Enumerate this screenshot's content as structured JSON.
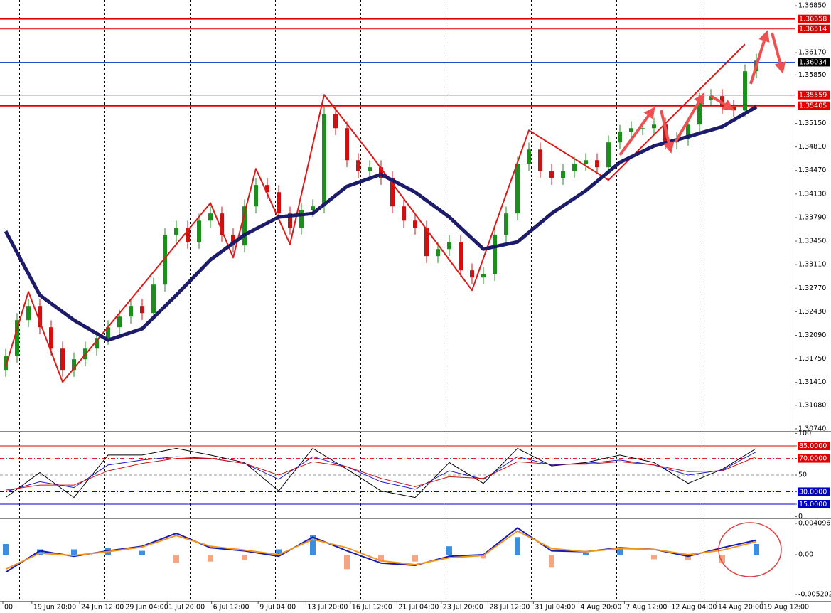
{
  "chart_data": [
    {
      "type": "candlestick",
      "x": [
        0,
        1,
        2,
        3,
        4,
        5,
        6,
        7,
        8,
        9,
        10,
        11,
        12,
        13,
        14,
        15,
        16,
        17,
        18,
        19,
        20,
        21,
        22,
        23,
        24,
        25,
        26,
        27,
        28,
        29,
        30,
        31,
        32,
        33,
        34,
        35,
        36,
        37,
        38,
        39,
        40,
        41,
        42,
        43,
        44,
        45,
        46,
        47,
        48,
        49,
        50,
        51,
        52,
        53,
        54,
        55,
        56,
        57,
        58,
        59,
        60,
        61,
        62,
        63,
        64,
        65,
        66
      ],
      "open": [
        1.3159,
        1.31795,
        1.32309,
        1.32514,
        1.32206,
        1.31898,
        1.3159,
        1.31744,
        1.31898,
        1.32052,
        1.32206,
        1.3236,
        1.32514,
        1.32411,
        1.32822,
        1.33541,
        1.33644,
        1.33438,
        1.33746,
        1.33849,
        1.33541,
        1.33387,
        1.33952,
        1.3426,
        1.34157,
        1.33849,
        1.33644,
        1.339,
        1.33952,
        1.35287,
        1.35081,
        1.34619,
        1.34465,
        1.34517,
        1.34362,
        1.33952,
        1.33746,
        1.33644,
        1.33233,
        1.33335,
        1.33438,
        1.33027,
        1.32925,
        1.32976,
        1.33541,
        1.33849,
        1.34568,
        1.34773,
        1.34465,
        1.34362,
        1.34465,
        1.34568,
        1.34619,
        1.34517,
        1.34876,
        1.3503,
        1.35081,
        1.35081,
        1.35133,
        1.34876,
        1.34927,
        1.35133,
        1.35492,
        1.35544,
        1.3539,
        1.35338,
        1.35903
      ],
      "high": [
        1.31895,
        1.32409,
        1.32614,
        1.32614,
        1.32306,
        1.31998,
        1.31844,
        1.31998,
        1.32152,
        1.32306,
        1.3246,
        1.32614,
        1.32614,
        1.32922,
        1.33641,
        1.33744,
        1.33744,
        1.33846,
        1.33949,
        1.33949,
        1.33641,
        1.34052,
        1.3436,
        1.3436,
        1.34257,
        1.33949,
        1.34,
        1.34052,
        1.35387,
        1.35387,
        1.35181,
        1.34719,
        1.34617,
        1.34617,
        1.34462,
        1.34052,
        1.33846,
        1.33744,
        1.33435,
        1.33538,
        1.33538,
        1.33127,
        1.33076,
        1.33641,
        1.33949,
        1.34668,
        1.34873,
        1.34873,
        1.34565,
        1.34565,
        1.34668,
        1.34719,
        1.34719,
        1.34976,
        1.3513,
        1.35181,
        1.35181,
        1.35233,
        1.35233,
        1.35027,
        1.35233,
        1.35592,
        1.35644,
        1.35644,
        1.3549,
        1.36003,
        1.36157
      ],
      "low": [
        1.3149,
        1.31695,
        1.32209,
        1.32106,
        1.31798,
        1.3149,
        1.3149,
        1.31644,
        1.31798,
        1.31952,
        1.32106,
        1.3226,
        1.32311,
        1.32311,
        1.32722,
        1.33441,
        1.33338,
        1.33338,
        1.33646,
        1.33441,
        1.33287,
        1.33287,
        1.33852,
        1.34057,
        1.33749,
        1.33544,
        1.33544,
        1.338,
        1.33852,
        1.34981,
        1.34519,
        1.34365,
        1.34365,
        1.34262,
        1.33852,
        1.33646,
        1.33544,
        1.33133,
        1.33133,
        1.33235,
        1.32927,
        1.32825,
        1.32825,
        1.32876,
        1.33441,
        1.33749,
        1.34468,
        1.34365,
        1.34262,
        1.34262,
        1.34365,
        1.34468,
        1.34417,
        1.34417,
        1.34776,
        1.3493,
        1.34981,
        1.34981,
        1.34776,
        1.34776,
        1.34827,
        1.35033,
        1.35392,
        1.3529,
        1.35238,
        1.35238,
        1.35803
      ],
      "close": [
        1.31795,
        1.32309,
        1.32514,
        1.32206,
        1.31898,
        1.3159,
        1.31744,
        1.31898,
        1.32052,
        1.32206,
        1.3236,
        1.32514,
        1.32411,
        1.32822,
        1.33541,
        1.33644,
        1.33438,
        1.33746,
        1.33849,
        1.33541,
        1.33387,
        1.33952,
        1.3426,
        1.34157,
        1.33849,
        1.33644,
        1.339,
        1.33952,
        1.35287,
        1.35081,
        1.34619,
        1.34465,
        1.34517,
        1.34362,
        1.33952,
        1.33746,
        1.33644,
        1.33233,
        1.33335,
        1.33438,
        1.33027,
        1.32925,
        1.32976,
        1.33541,
        1.33849,
        1.34568,
        1.34773,
        1.34465,
        1.34362,
        1.34465,
        1.34568,
        1.34619,
        1.34517,
        1.34876,
        1.3503,
        1.35081,
        1.35081,
        1.35133,
        1.34876,
        1.34927,
        1.35133,
        1.35492,
        1.35544,
        1.3539,
        1.35338,
        1.35903,
        1.36057
      ],
      "up_color": "#1a8f1a",
      "down_color": "#d01010",
      "moving_average": {
        "color": "#1c1c6b",
        "x": [
          0,
          3,
          6,
          9,
          12,
          15,
          18,
          21,
          24,
          27,
          30,
          33,
          36,
          39,
          42,
          45,
          48,
          51,
          54,
          57,
          60,
          63,
          66
        ],
        "values": [
          1.33592,
          1.3267,
          1.32309,
          1.32021,
          1.32185,
          1.3267,
          1.33181,
          1.33541,
          1.33798,
          1.33849,
          1.34239,
          1.34414,
          1.34157,
          1.33798,
          1.33336,
          1.33438,
          1.33849,
          1.34178,
          1.34588,
          1.34825,
          1.34958,
          1.35102,
          1.3539
        ]
      },
      "zigzag": {
        "color": "#e01818",
        "x": [
          0,
          2,
          5,
          18,
          20,
          22,
          25,
          28,
          32,
          41,
          46,
          53,
          65
        ],
        "values": [
          1.31641,
          1.32719,
          1.31415,
          1.34,
          1.33212,
          1.34496,
          1.33407,
          1.35564,
          1.34722,
          1.3274,
          1.35051,
          1.34332,
          1.36293
        ]
      },
      "levels": [
        {
          "value": 1.36658,
          "color": "#e00000",
          "line_width": 2
        },
        {
          "value": 1.36514,
          "color": "#e00000",
          "line_width": 1
        },
        {
          "value": 1.36034,
          "color": "#2050d0",
          "line_width": 1,
          "label_color": "#000000"
        },
        {
          "value": 1.35559,
          "color": "#e00000",
          "line_width": 1
        },
        {
          "value": 1.35405,
          "color": "#e00000",
          "line_width": 2
        }
      ],
      "xlim": [
        -0.5,
        69.375
      ],
      "xticks": [
        {
          "value": -0.25,
          "label": "00"
        },
        {
          "value": 2.3,
          "label": "19 Jun 20:00"
        },
        {
          "value": 6.5,
          "label": "24 Jun 12:00"
        },
        {
          "value": 10.4,
          "label": "29 Jun 04:00"
        },
        {
          "value": 14.2,
          "label": "1 Jul 20:00"
        },
        {
          "value": 18.1,
          "label": "6 Jul 12:00"
        },
        {
          "value": 22.2,
          "label": "9 Jul 04:00"
        },
        {
          "value": 26.4,
          "label": "13 Jul 20:00"
        },
        {
          "value": 30.3,
          "label": "16 Jul 12:00"
        },
        {
          "value": 34.4,
          "label": "21 Jul 04:00"
        },
        {
          "value": 38.3,
          "label": "23 Jul 20:00"
        },
        {
          "value": 42.4,
          "label": "28 Jul 12:00"
        },
        {
          "value": 46.4,
          "label": "31 Jul 04:00"
        },
        {
          "value": 50.4,
          "label": "4 Aug 20:00"
        },
        {
          "value": 54.4,
          "label": "7 Aug 12:00"
        },
        {
          "value": 58.4,
          "label": "12 Aug 04:00"
        },
        {
          "value": 62.5,
          "label": "14 Aug 20:00"
        },
        {
          "value": 66.5,
          "label": "19 Aug 12:00"
        }
      ],
      "ylim": [
        1.30719,
        1.36932
      ],
      "yticks": [
        {
          "value": 1.3685,
          "label": "1.36850"
        },
        {
          "value": 1.3617,
          "label": "1.36170"
        },
        {
          "value": 1.3585,
          "label": "1.35850"
        },
        {
          "value": 1.3515,
          "label": "1.35150"
        },
        {
          "value": 1.3481,
          "label": "1.34810"
        },
        {
          "value": 1.3447,
          "label": "1.34470"
        },
        {
          "value": 1.3413,
          "label": "1.34130"
        },
        {
          "value": 1.3379,
          "label": "1.33790"
        },
        {
          "value": 1.3345,
          "label": "1.33450"
        },
        {
          "value": 1.3311,
          "label": "1.33110"
        },
        {
          "value": 1.3277,
          "label": "1.32770"
        },
        {
          "value": 1.3243,
          "label": "1.32430"
        },
        {
          "value": 1.3209,
          "label": "1.32090"
        },
        {
          "value": 1.3175,
          "label": "1.31750"
        },
        {
          "value": 1.3141,
          "label": "1.31410"
        },
        {
          "value": 1.3108,
          "label": "1.31080"
        },
        {
          "value": 1.3074,
          "label": "1.30740"
        }
      ]
    },
    {
      "type": "line",
      "x": [
        0,
        3,
        6,
        9,
        12,
        15,
        18,
        21,
        24,
        27,
        30,
        33,
        36,
        39,
        42,
        45,
        48,
        51,
        54,
        57,
        60,
        63,
        66
      ],
      "series": [
        {
          "color": "#000000",
          "values": [
            23,
            53,
            23,
            74,
            74,
            82,
            74,
            65,
            31,
            82,
            57,
            31,
            23,
            65,
            40,
            82,
            61,
            65,
            74,
            65,
            40,
            57,
            82
          ]
        },
        {
          "color": "#1a1ac8",
          "values": [
            30,
            42,
            35,
            62,
            68,
            72,
            70,
            64,
            45,
            72,
            60,
            42,
            33,
            55,
            45,
            72,
            62,
            64,
            68,
            62,
            50,
            56,
            78
          ]
        },
        {
          "color": "#d01010",
          "values": [
            32,
            38,
            38,
            55,
            64,
            70,
            70,
            64,
            50,
            66,
            60,
            46,
            36,
            48,
            46,
            66,
            63,
            63,
            66,
            62,
            54,
            55,
            72
          ]
        }
      ],
      "ylim": [
        -1.2,
        101.2
      ],
      "yticks": [
        100,
        {
          "value": 85,
          "label": "85.0000"
        },
        {
          "value": 70,
          "label": "70.0000"
        },
        50,
        {
          "value": 30,
          "label": "30.0000"
        },
        {
          "value": 15,
          "label": "15.0000"
        },
        0
      ],
      "tick_colors": [
        null,
        "#e00000",
        "#e00000",
        "#9a9a9a",
        "#0000c8",
        "#0000c8",
        null
      ],
      "tick_line_styles": [
        null,
        "solid",
        "dashdot",
        "dash",
        "dashdot",
        "solid",
        null
      ]
    },
    {
      "type": "macd",
      "x": [
        0,
        3,
        6,
        9,
        12,
        15,
        18,
        21,
        24,
        27,
        30,
        33,
        36,
        39,
        42,
        45,
        48,
        51,
        54,
        57,
        60,
        63,
        66
      ],
      "histogram": {
        "up_color": "#3b8fe0",
        "down_color": "#f4a582",
        "values": [
          0.0014,
          0.0007,
          0.0007,
          0.0009,
          0.0005,
          -0.0011,
          -0.0009,
          -0.0007,
          0.0007,
          0.0026,
          -0.0019,
          -0.0009,
          -0.0009,
          0.0011,
          -0.0005,
          0.0023,
          -0.0017,
          0.0003,
          0.0009,
          -0.0006,
          -0.0007,
          -0.0011,
          0.0014
        ]
      },
      "series": [
        {
          "color": "#1a1ab4",
          "values": [
            -0.0023,
            0.0005,
            -0.0002,
            0.0005,
            0.0011,
            0.0028,
            0.0009,
            0.0005,
            -0.0002,
            0.0023,
            0.0005,
            -0.0011,
            -0.0014,
            -0.0002,
            0,
            0.0035,
            0.0005,
            0.0004,
            0.0009,
            0.0007,
            -0.0002,
            0.0009,
            0.0019
          ]
        },
        {
          "color": "#f0961e",
          "values": [
            -0.0019,
            0.0002,
            -0.0001,
            0.0004,
            0.001,
            0.0025,
            0.0011,
            0.0006,
            0,
            0.002,
            0.0009,
            -0.0008,
            -0.0013,
            -0.0004,
            -0.0001,
            0.0031,
            0.0008,
            0.0004,
            0.0008,
            0.0007,
            0,
            0.0006,
            0.0017
          ]
        }
      ],
      "ylim": [
        -0.00605,
        0.004655
      ],
      "yticks": [
        0.0040965,
        {
          "value": 0,
          "label": "0.00"
        },
        -0.005202
      ]
    }
  ]
}
